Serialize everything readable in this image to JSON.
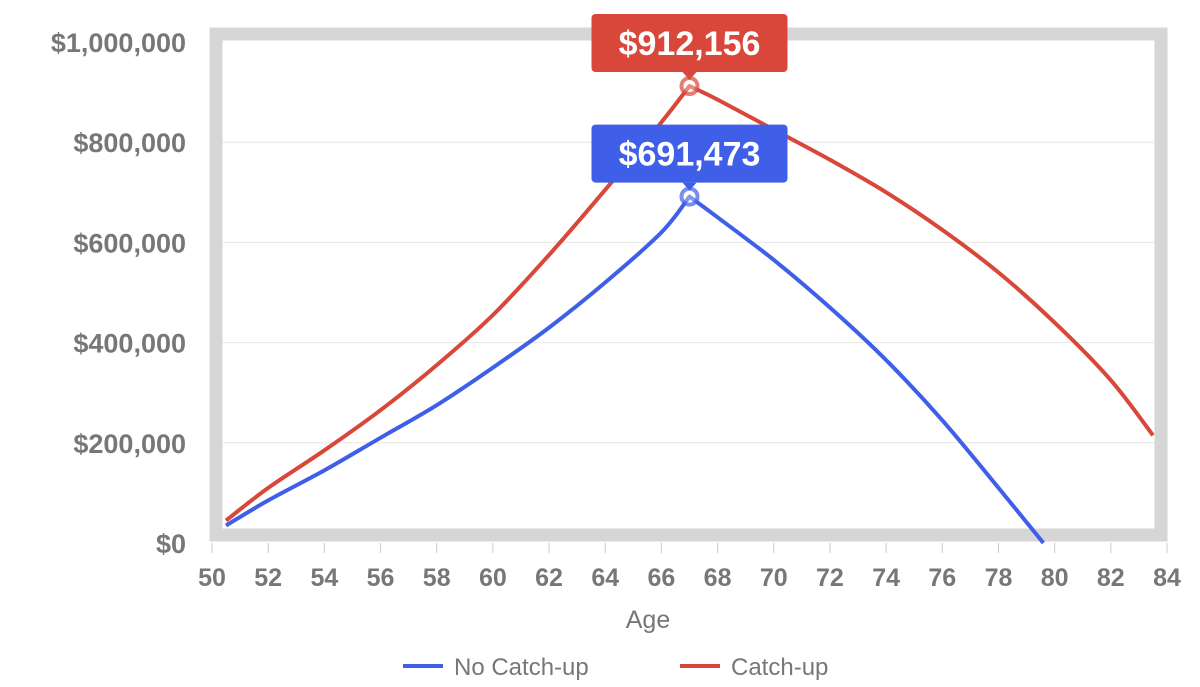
{
  "chart_data": {
    "type": "line",
    "title": "",
    "xlabel": "Age",
    "ylabel": "",
    "xlim": [
      50,
      84
    ],
    "ylim": [
      0,
      1000000
    ],
    "x_ticks": [
      "50",
      "52",
      "54",
      "56",
      "58",
      "60",
      "62",
      "64",
      "66",
      "68",
      "70",
      "72",
      "74",
      "76",
      "78",
      "80",
      "82",
      "84"
    ],
    "y_ticks": [
      "$0",
      "$200,000",
      "$400,000",
      "$600,000",
      "$800,000",
      "$1,000,000"
    ],
    "grid": true,
    "legend_position": "bottom",
    "series": [
      {
        "name": "No Catch-up",
        "color": "#3f5fe8",
        "x": [
          50.5,
          52,
          54,
          56,
          58,
          60,
          62,
          64,
          66,
          67,
          68,
          70,
          72,
          74,
          76,
          78,
          79.6
        ],
        "y": [
          35000,
          85000,
          145000,
          210000,
          275000,
          350000,
          430000,
          520000,
          620000,
          691473,
          650000,
          565000,
          470000,
          365000,
          245000,
          110000,
          0
        ],
        "peak": {
          "x": 67,
          "y": 691473,
          "label": "$691,473"
        }
      },
      {
        "name": "Catch-up",
        "color": "#d9473a",
        "x": [
          50.5,
          52,
          54,
          56,
          58,
          60,
          62,
          64,
          66,
          67,
          68,
          70,
          72,
          74,
          76,
          78,
          80,
          82,
          83.5
        ],
        "y": [
          45000,
          110000,
          185000,
          265000,
          355000,
          455000,
          575000,
          705000,
          840000,
          912156,
          885000,
          825000,
          765000,
          700000,
          625000,
          540000,
          440000,
          325000,
          215000
        ],
        "peak": {
          "x": 67,
          "y": 912156,
          "label": "$912,156"
        }
      }
    ]
  },
  "legend": [
    {
      "label": "No Catch-up",
      "color": "#3f5fe8"
    },
    {
      "label": "Catch-up",
      "color": "#d9473a"
    }
  ]
}
